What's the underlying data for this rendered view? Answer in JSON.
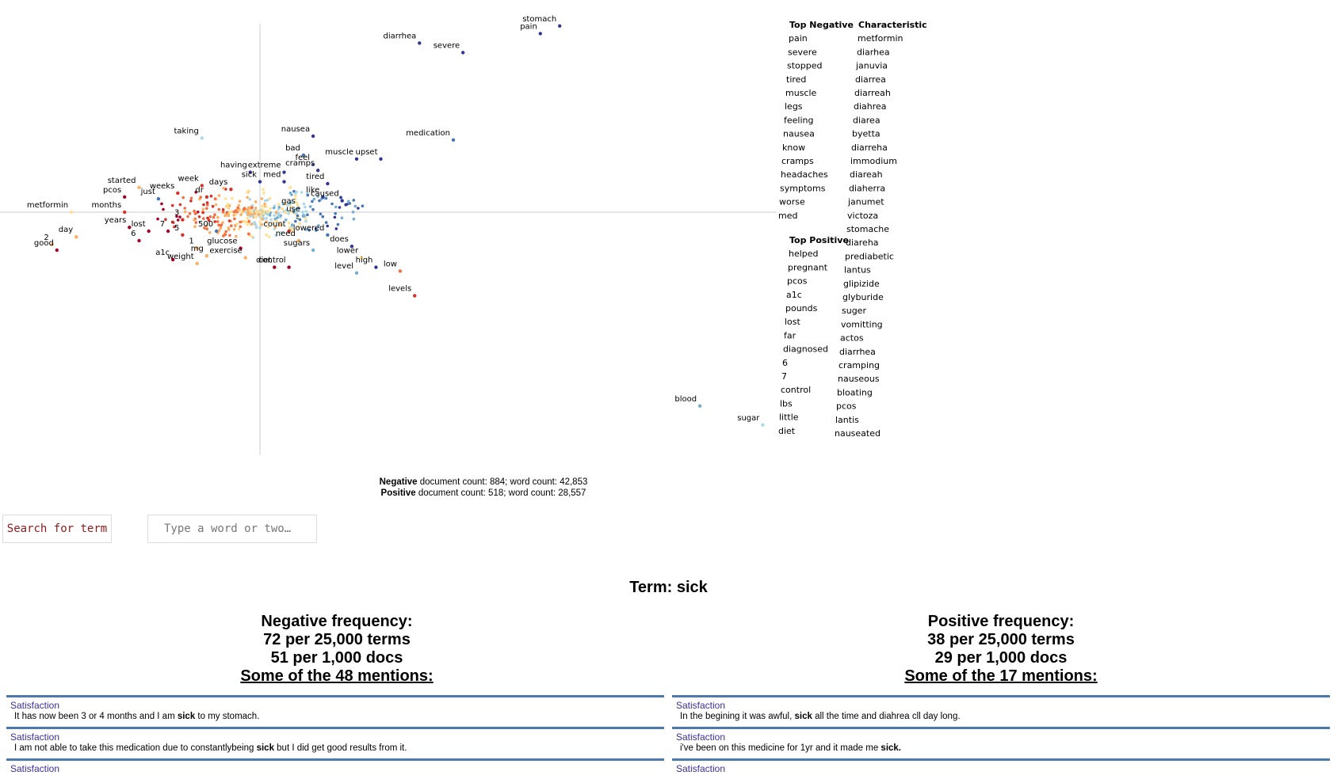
{
  "chart_data": {
    "type": "scatter",
    "title": "",
    "xlabel": "",
    "ylabel": "",
    "xlim": [
      -1,
      1
    ],
    "ylim": [
      -1,
      1
    ],
    "grid": false,
    "labeled_points": [
      {
        "term": "stomach",
        "x": 0.62,
        "y": 0.98,
        "color": "#313695"
      },
      {
        "term": "pain",
        "x": 0.58,
        "y": 0.94,
        "color": "#313695"
      },
      {
        "term": "diarrhea",
        "x": 0.33,
        "y": 0.89,
        "color": "#313695"
      },
      {
        "term": "severe",
        "x": 0.42,
        "y": 0.84,
        "color": "#313695"
      },
      {
        "term": "taking",
        "x": -0.12,
        "y": 0.39,
        "color": "#abd9e9"
      },
      {
        "term": "nausea",
        "x": 0.11,
        "y": 0.4,
        "color": "#313695"
      },
      {
        "term": "medication",
        "x": 0.4,
        "y": 0.38,
        "color": "#4575b4"
      },
      {
        "term": "bad",
        "x": 0.09,
        "y": 0.3,
        "color": "#4575b4"
      },
      {
        "term": "muscle",
        "x": 0.2,
        "y": 0.28,
        "color": "#313695"
      },
      {
        "term": "upset",
        "x": 0.25,
        "y": 0.28,
        "color": "#313695"
      },
      {
        "term": "feel",
        "x": 0.11,
        "y": 0.25,
        "color": "#4575b4"
      },
      {
        "term": "having",
        "x": -0.02,
        "y": 0.21,
        "color": "#313695"
      },
      {
        "term": "extreme",
        "x": 0.05,
        "y": 0.21,
        "color": "#313695"
      },
      {
        "term": "cramps",
        "x": 0.12,
        "y": 0.22,
        "color": "#313695"
      },
      {
        "term": "sick",
        "x": 0.0,
        "y": 0.16,
        "color": "#313695"
      },
      {
        "term": "med",
        "x": 0.05,
        "y": 0.16,
        "color": "#313695"
      },
      {
        "term": "tired",
        "x": 0.14,
        "y": 0.15,
        "color": "#313695"
      },
      {
        "term": "started",
        "x": -0.25,
        "y": 0.13,
        "color": "#fdae61"
      },
      {
        "term": "pcos",
        "x": -0.28,
        "y": 0.08,
        "color": "#a50026"
      },
      {
        "term": "weeks",
        "x": -0.17,
        "y": 0.1,
        "color": "#d73027"
      },
      {
        "term": "just",
        "x": -0.21,
        "y": 0.07,
        "color": "#4575b4"
      },
      {
        "term": "week",
        "x": -0.12,
        "y": 0.14,
        "color": "#d73027"
      },
      {
        "term": "days",
        "x": -0.06,
        "y": 0.12,
        "color": "#d73027"
      },
      {
        "term": "dr",
        "x": -0.11,
        "y": 0.08,
        "color": "#d73027"
      },
      {
        "term": "like",
        "x": 0.13,
        "y": 0.08,
        "color": "#313695"
      },
      {
        "term": "caused",
        "x": 0.17,
        "y": 0.06,
        "color": "#313695"
      },
      {
        "term": "gas",
        "x": 0.08,
        "y": 0.02,
        "color": "#74add1"
      },
      {
        "term": "metformin",
        "x": -0.39,
        "y": 0.0,
        "color": "#fee090"
      },
      {
        "term": "months",
        "x": -0.28,
        "y": 0.0,
        "color": "#d73027"
      },
      {
        "term": "use",
        "x": 0.09,
        "y": -0.02,
        "color": "#74add1"
      },
      {
        "term": "3",
        "x": -0.16,
        "y": -0.04,
        "color": "#d73027"
      },
      {
        "term": "years",
        "x": -0.27,
        "y": -0.08,
        "color": "#a50026"
      },
      {
        "term": "lost",
        "x": -0.23,
        "y": -0.1,
        "color": "#a50026"
      },
      {
        "term": "7",
        "x": -0.19,
        "y": -0.1,
        "color": "#a50026"
      },
      {
        "term": "5",
        "x": -0.16,
        "y": -0.12,
        "color": "#d73027"
      },
      {
        "term": "500",
        "x": -0.09,
        "y": -0.1,
        "color": "#4575b4"
      },
      {
        "term": "count",
        "x": 0.06,
        "y": -0.1,
        "color": "#d73027"
      },
      {
        "term": "lowered",
        "x": 0.14,
        "y": -0.12,
        "color": "#4575b4"
      },
      {
        "term": "day",
        "x": -0.38,
        "y": -0.13,
        "color": "#fdae61"
      },
      {
        "term": "6",
        "x": -0.25,
        "y": -0.15,
        "color": "#a50026"
      },
      {
        "term": "2",
        "x": -0.43,
        "y": -0.17,
        "color": "#fdae61"
      },
      {
        "term": "need",
        "x": 0.08,
        "y": -0.15,
        "color": "#fdae61"
      },
      {
        "term": "does",
        "x": 0.19,
        "y": -0.18,
        "color": "#313695"
      },
      {
        "term": "1",
        "x": -0.13,
        "y": -0.19,
        "color": "#fdae61"
      },
      {
        "term": "glucose",
        "x": -0.04,
        "y": -0.19,
        "color": "#a50026"
      },
      {
        "term": "good",
        "x": -0.42,
        "y": -0.2,
        "color": "#a50026"
      },
      {
        "term": "mg",
        "x": -0.11,
        "y": -0.23,
        "color": "#fdae61"
      },
      {
        "term": "sugars",
        "x": 0.11,
        "y": -0.2,
        "color": "#74add1"
      },
      {
        "term": "lower",
        "x": 0.21,
        "y": -0.24,
        "color": "#fee090"
      },
      {
        "term": "a1c",
        "x": -0.18,
        "y": -0.25,
        "color": "#a50026"
      },
      {
        "term": "exercise",
        "x": -0.03,
        "y": -0.24,
        "color": "#fdae61"
      },
      {
        "term": "weight",
        "x": -0.13,
        "y": -0.27,
        "color": "#fdae61"
      },
      {
        "term": "diet",
        "x": 0.03,
        "y": -0.29,
        "color": "#a50026"
      },
      {
        "term": "control",
        "x": 0.06,
        "y": -0.29,
        "color": "#a50026"
      },
      {
        "term": "low",
        "x": 0.29,
        "y": -0.31,
        "color": "#f46d43"
      },
      {
        "term": "level",
        "x": 0.2,
        "y": -0.32,
        "color": "#74add1"
      },
      {
        "term": "high",
        "x": 0.24,
        "y": -0.29,
        "color": "#313695"
      },
      {
        "term": "levels",
        "x": 0.32,
        "y": -0.44,
        "color": "#d73027"
      },
      {
        "term": "blood",
        "x": 0.91,
        "y": -1.02,
        "color": "#74add1"
      },
      {
        "term": "sugar",
        "x": 1.04,
        "y": -1.12,
        "color": "#abd9e9"
      }
    ],
    "legend_lists": {
      "top_negative": {
        "title": "Top Negative",
        "terms": [
          "pain",
          "severe",
          "stopped",
          "tired",
          "muscle",
          "legs",
          "feeling",
          "nausea",
          "know",
          "cramps",
          "headaches",
          "symptoms",
          "worse",
          "med"
        ]
      },
      "top_positive": {
        "title": "Top Positive",
        "terms": [
          "helped",
          "pregnant",
          "pcos",
          "a1c",
          "pounds",
          "lost",
          "far",
          "diagnosed",
          "6",
          "7",
          "control",
          "lbs",
          "little",
          "diet"
        ]
      },
      "characteristic": {
        "title": "Characteristic",
        "terms": [
          "metformin",
          "diarhea",
          "januvia",
          "diarrea",
          "diarreah",
          "diahrea",
          "diarea",
          "byetta",
          "diarreha",
          "immodium",
          "diareah",
          "diaherra",
          "janumet",
          "victoza",
          "stomache",
          "diareha",
          "prediabetic",
          "lantus",
          "glipizide",
          "glyburide",
          "suger",
          "vomitting",
          "actos",
          "diarrhea",
          "cramping",
          "nauseous",
          "bloating",
          "pcos",
          "lantis",
          "nauseated"
        ]
      }
    }
  },
  "counts": {
    "negative_label": "Negative",
    "negative_text": " document count: 884; word count: 42,853",
    "positive_label": "Positive",
    "positive_text": " document count: 518; word count: 28,557"
  },
  "search": {
    "button_label": "Search for term",
    "placeholder": "Type a word or two…"
  },
  "term": {
    "title": "Term: sick",
    "negative": {
      "heading": "Negative frequency:",
      "per_terms": "72 per 25,000 terms",
      "per_docs": "51 per 1,000 docs",
      "mentions": "Some of the 48 mentions:",
      "snippets": [
        {
          "category": "Satisfaction",
          "before": "It has now been 3 or 4 months and I am ",
          "match": "sick",
          "after": " to my stomach."
        },
        {
          "category": "Satisfaction",
          "before": "I am not able to take this medication due to constantlybeing ",
          "match": "sick",
          "after": " but I did get good results from it."
        },
        {
          "category": "Satisfaction",
          "before": "",
          "match": "",
          "after": ""
        }
      ]
    },
    "positive": {
      "heading": "Positive frequency:",
      "per_terms": "38 per 25,000 terms",
      "per_docs": "29 per 1,000 docs",
      "mentions": "Some of the 17 mentions:",
      "snippets": [
        {
          "category": "Satisfaction",
          "before": "In the begining it was awful, ",
          "match": "sick",
          "after": " all the time and diahrea cll day long."
        },
        {
          "category": "Satisfaction",
          "before": "i've been on this medicine for 1yr and it made me ",
          "match": "sick.",
          "after": ""
        },
        {
          "category": "Satisfaction",
          "before": "",
          "match": "",
          "after": ""
        }
      ]
    }
  }
}
